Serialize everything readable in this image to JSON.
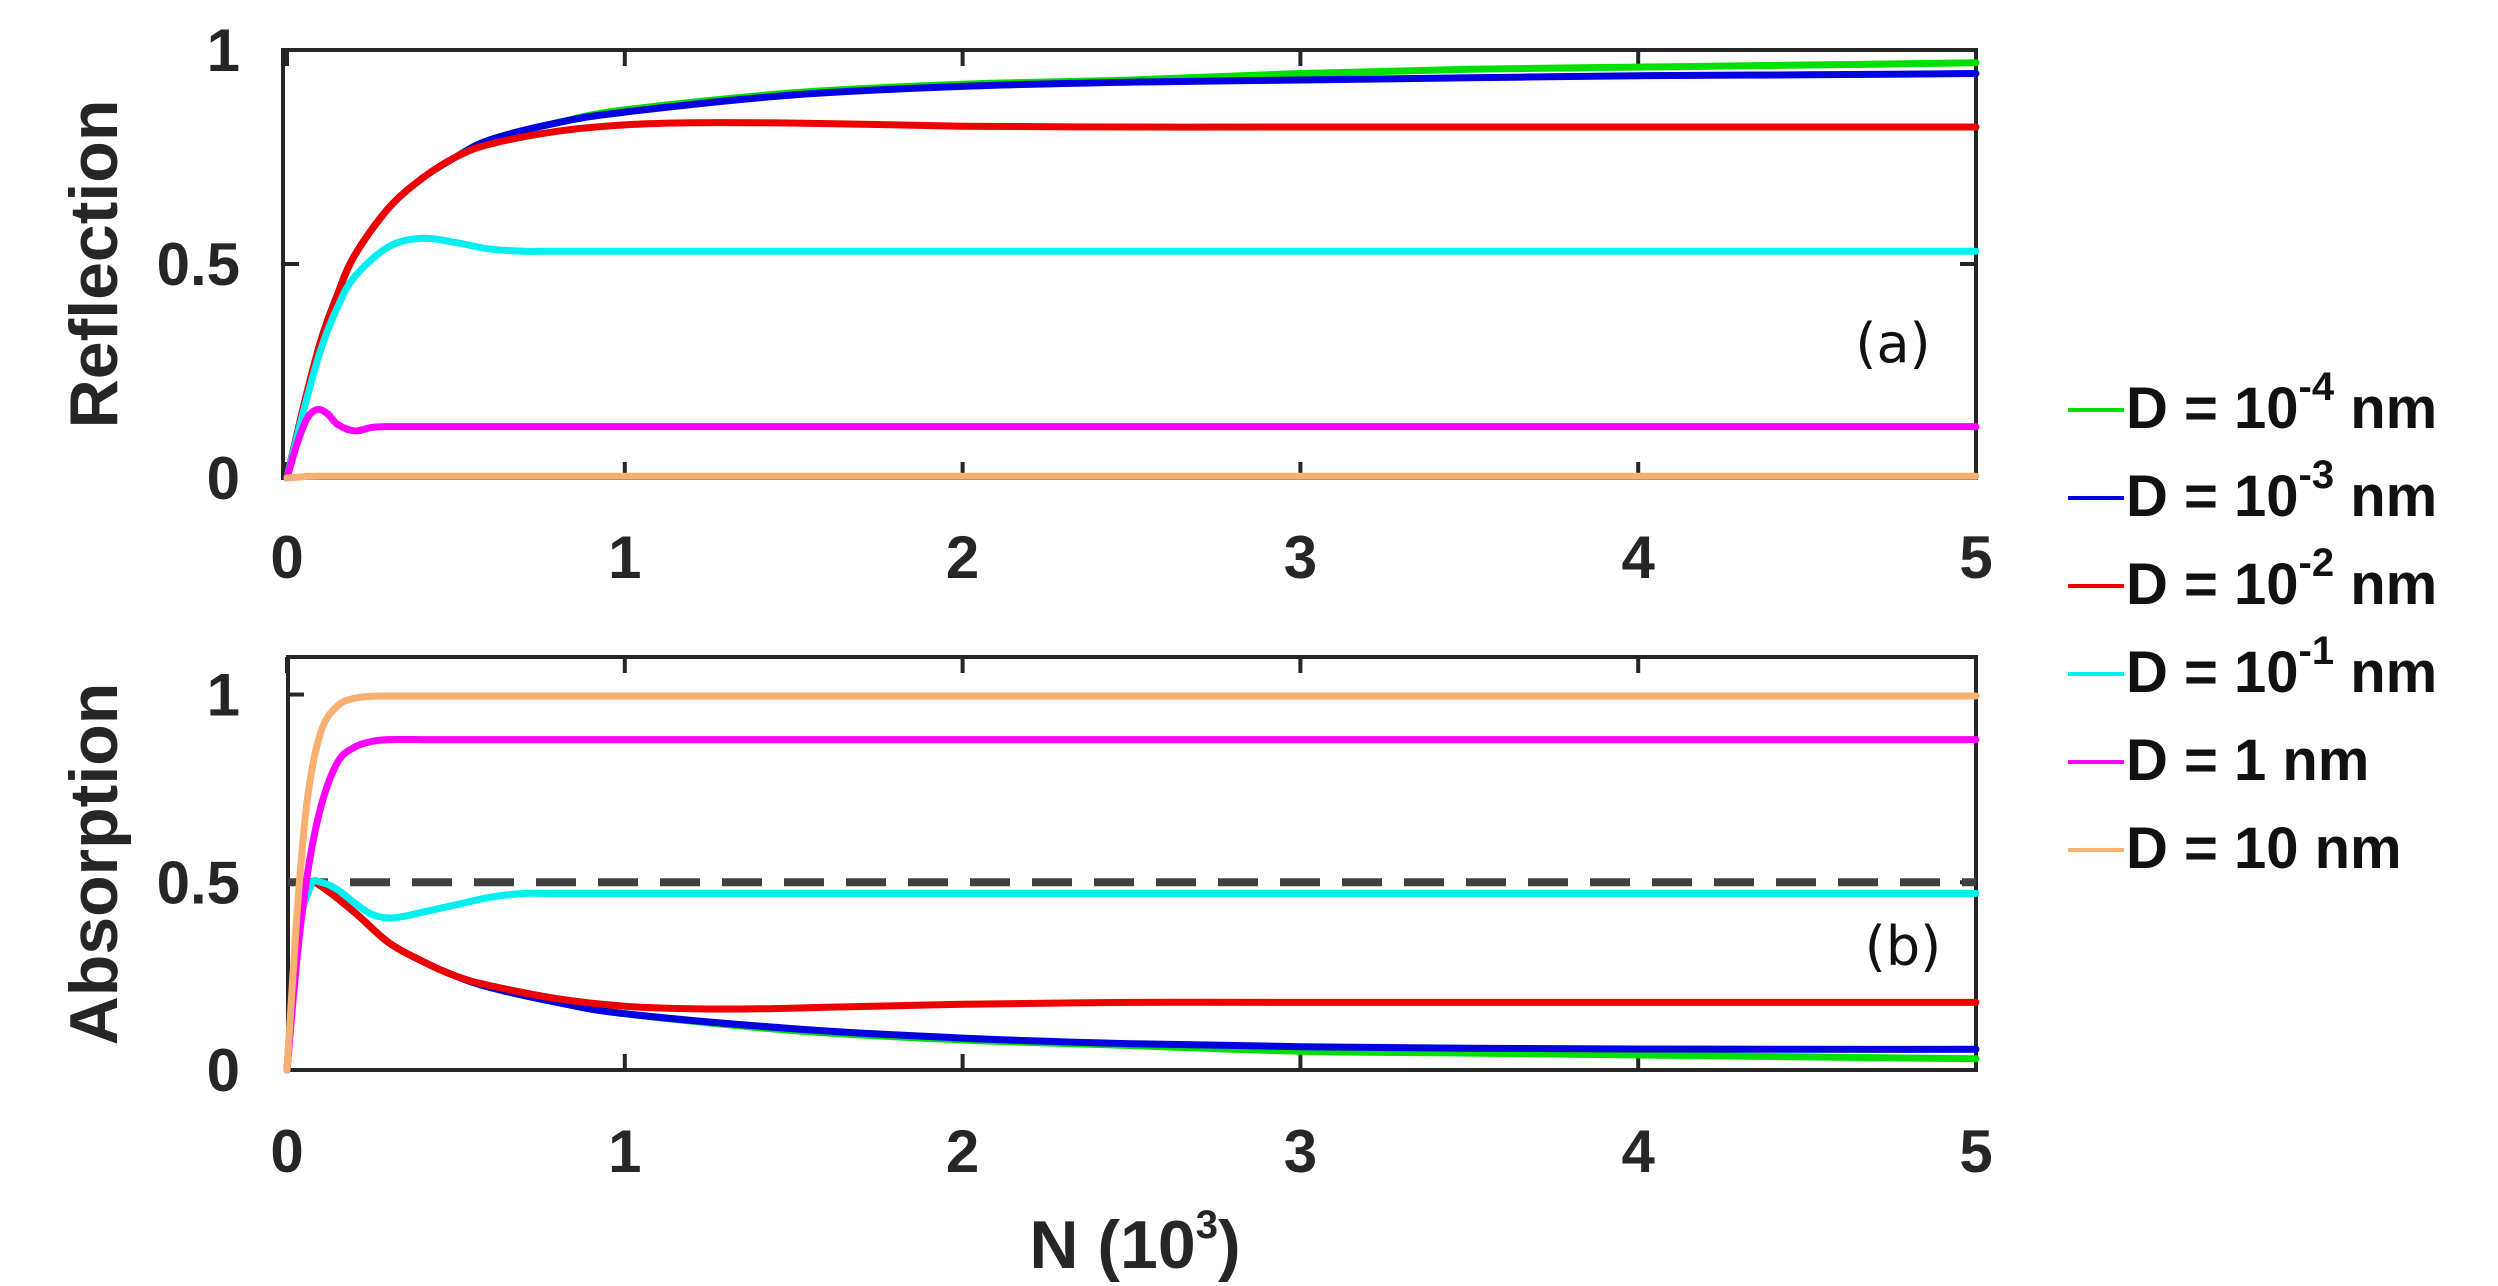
{
  "chart_data": [
    {
      "type": "line",
      "panel_label": "(a)",
      "xlabel": "",
      "ylabel": "Reflection",
      "xlim": [
        0,
        5
      ],
      "ylim": [
        0,
        1
      ],
      "xticks": [
        "0",
        "1",
        "2",
        "3",
        "4",
        "5"
      ],
      "yticks": [
        "0",
        "0.5",
        "1"
      ],
      "series": [
        {
          "key": "d1e-4",
          "color": "#00e000",
          "x": [
            0,
            0.05,
            0.1,
            0.15,
            0.2,
            0.3,
            0.4,
            0.5,
            0.6,
            0.8,
            1,
            1.5,
            2,
            2.5,
            3,
            3.5,
            4,
            4.5,
            5
          ],
          "y": [
            0,
            0.17,
            0.32,
            0.43,
            0.52,
            0.63,
            0.7,
            0.75,
            0.79,
            0.83,
            0.86,
            0.9,
            0.92,
            0.93,
            0.945,
            0.955,
            0.96,
            0.965,
            0.97
          ]
        },
        {
          "key": "d1e-3",
          "color": "#0000e0",
          "x": [
            0,
            0.05,
            0.1,
            0.15,
            0.2,
            0.3,
            0.4,
            0.5,
            0.6,
            0.8,
            1,
            1.5,
            2,
            2.5,
            3,
            3.5,
            4,
            4.5,
            5
          ],
          "y": [
            0,
            0.17,
            0.32,
            0.43,
            0.52,
            0.63,
            0.7,
            0.75,
            0.79,
            0.83,
            0.855,
            0.895,
            0.915,
            0.925,
            0.93,
            0.935,
            0.94,
            0.942,
            0.945
          ]
        },
        {
          "key": "d1e-2",
          "color": "#ee0000",
          "x": [
            0,
            0.05,
            0.1,
            0.15,
            0.2,
            0.3,
            0.4,
            0.5,
            0.6,
            0.8,
            1,
            1.2,
            1.4,
            1.6,
            2,
            2.5,
            3,
            4,
            5
          ],
          "y": [
            0,
            0.17,
            0.32,
            0.43,
            0.52,
            0.63,
            0.7,
            0.75,
            0.78,
            0.81,
            0.825,
            0.83,
            0.83,
            0.828,
            0.822,
            0.82,
            0.82,
            0.82,
            0.82
          ]
        },
        {
          "key": "d1e-1",
          "color": "#00f0f0",
          "x": [
            0,
            0.05,
            0.1,
            0.15,
            0.2,
            0.3,
            0.4,
            0.5,
            0.6,
            0.7,
            0.8,
            1,
            2,
            3,
            4,
            5
          ],
          "y": [
            0,
            0.16,
            0.3,
            0.4,
            0.47,
            0.54,
            0.56,
            0.55,
            0.535,
            0.53,
            0.53,
            0.53,
            0.53,
            0.53,
            0.53,
            0.53
          ]
        },
        {
          "key": "d1",
          "color": "#ff00ff",
          "x": [
            0,
            0.03,
            0.06,
            0.09,
            0.12,
            0.15,
            0.2,
            0.25,
            0.3,
            0.4,
            0.5,
            1,
            2,
            3,
            4,
            5
          ],
          "y": [
            0,
            0.08,
            0.14,
            0.16,
            0.15,
            0.125,
            0.11,
            0.118,
            0.12,
            0.12,
            0.12,
            0.12,
            0.12,
            0.12,
            0.12,
            0.12
          ]
        },
        {
          "key": "d10",
          "color": "#f8b070",
          "x": [
            0,
            0.05,
            0.1,
            0.5,
            1,
            2,
            3,
            4,
            5
          ],
          "y": [
            0,
            0.003,
            0.004,
            0.004,
            0.004,
            0.004,
            0.004,
            0.004,
            0.004
          ]
        }
      ]
    },
    {
      "type": "line",
      "panel_label": "(b)",
      "xlabel": "N (10",
      "xlabel_sup": "3",
      "xlabel_end": ")",
      "ylabel": "Absorption",
      "xlim": [
        0,
        5
      ],
      "ylim": [
        0,
        1.1
      ],
      "xticks": [
        "0",
        "1",
        "2",
        "3",
        "4",
        "5"
      ],
      "yticks": [
        "0",
        "0.5",
        "1"
      ],
      "reference_line": {
        "y": 0.5,
        "style": "dashed",
        "color": "#404040"
      },
      "series": [
        {
          "key": "d1e-4",
          "color": "#00e000",
          "x": [
            0,
            0.03,
            0.07,
            0.1,
            0.2,
            0.3,
            0.4,
            0.5,
            0.6,
            0.8,
            1,
            1.5,
            2,
            2.5,
            3,
            3.5,
            4,
            4.5,
            5
          ],
          "y": [
            0,
            0.35,
            0.49,
            0.49,
            0.42,
            0.34,
            0.29,
            0.25,
            0.22,
            0.18,
            0.15,
            0.105,
            0.08,
            0.065,
            0.05,
            0.045,
            0.04,
            0.035,
            0.03
          ]
        },
        {
          "key": "d1e-3",
          "color": "#0000e0",
          "x": [
            0,
            0.03,
            0.07,
            0.1,
            0.2,
            0.3,
            0.4,
            0.5,
            0.6,
            0.8,
            1,
            1.5,
            2,
            2.5,
            3,
            3.5,
            4,
            4.5,
            5
          ],
          "y": [
            0,
            0.35,
            0.49,
            0.49,
            0.42,
            0.34,
            0.29,
            0.25,
            0.22,
            0.18,
            0.15,
            0.11,
            0.085,
            0.07,
            0.062,
            0.058,
            0.056,
            0.055,
            0.055
          ]
        },
        {
          "key": "d1e-2",
          "color": "#ee0000",
          "x": [
            0,
            0.03,
            0.07,
            0.1,
            0.2,
            0.3,
            0.4,
            0.5,
            0.6,
            0.8,
            1,
            1.2,
            1.4,
            1.6,
            2,
            2.5,
            3,
            4,
            5
          ],
          "y": [
            0,
            0.35,
            0.49,
            0.49,
            0.42,
            0.34,
            0.29,
            0.25,
            0.225,
            0.19,
            0.17,
            0.163,
            0.163,
            0.167,
            0.175,
            0.18,
            0.18,
            0.18,
            0.18
          ]
        },
        {
          "key": "d1e-1",
          "color": "#00f0f0",
          "x": [
            0,
            0.03,
            0.07,
            0.1,
            0.15,
            0.2,
            0.25,
            0.3,
            0.35,
            0.4,
            0.5,
            0.6,
            0.7,
            0.8,
            1,
            2,
            3,
            4,
            5
          ],
          "y": [
            0,
            0.35,
            0.49,
            0.5,
            0.48,
            0.445,
            0.415,
            0.405,
            0.41,
            0.42,
            0.44,
            0.46,
            0.47,
            0.47,
            0.47,
            0.47,
            0.47,
            0.47,
            0.47
          ]
        },
        {
          "key": "d1",
          "color": "#ff00ff",
          "x": [
            0,
            0.03,
            0.06,
            0.1,
            0.15,
            0.2,
            0.25,
            0.3,
            0.4,
            0.5,
            1,
            2,
            3,
            4,
            5
          ],
          "y": [
            0,
            0.3,
            0.52,
            0.7,
            0.82,
            0.86,
            0.875,
            0.88,
            0.88,
            0.88,
            0.88,
            0.88,
            0.88,
            0.88,
            0.88
          ]
        },
        {
          "key": "d10",
          "color": "#f8b070",
          "x": [
            0,
            0.03,
            0.06,
            0.1,
            0.15,
            0.2,
            0.25,
            0.3,
            0.4,
            1,
            2,
            3,
            4,
            5
          ],
          "y": [
            0,
            0.42,
            0.72,
            0.9,
            0.97,
            0.99,
            0.995,
            0.996,
            0.996,
            0.996,
            0.996,
            0.996,
            0.996,
            0.996
          ]
        }
      ]
    }
  ],
  "legend": {
    "placement": "right",
    "items": [
      {
        "key": "d1e-4",
        "color": "#00e000",
        "prefix": "D = 10",
        "sup": "-4",
        "suffix": " nm"
      },
      {
        "key": "d1e-3",
        "color": "#0000e0",
        "prefix": "D = 10",
        "sup": "-3",
        "suffix": " nm"
      },
      {
        "key": "d1e-2",
        "color": "#ee0000",
        "prefix": "D = 10",
        "sup": "-2",
        "suffix": " nm"
      },
      {
        "key": "d1e-1",
        "color": "#00f0f0",
        "prefix": "D = 10",
        "sup": "-1",
        "suffix": " nm"
      },
      {
        "key": "d1",
        "color": "#ff00ff",
        "prefix": "D = 1 nm",
        "sup": "",
        "suffix": ""
      },
      {
        "key": "d10",
        "color": "#f8b070",
        "prefix": "D = 10 nm",
        "sup": "",
        "suffix": ""
      }
    ]
  }
}
